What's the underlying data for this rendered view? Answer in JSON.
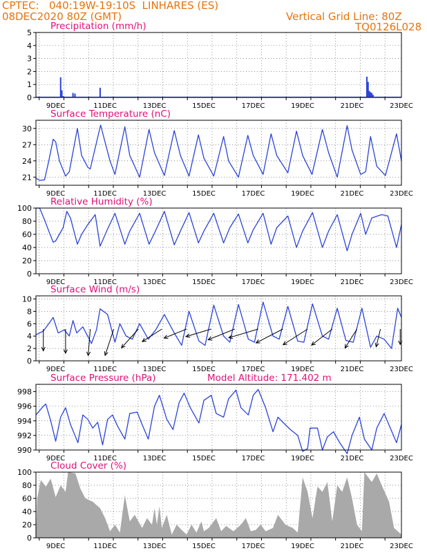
{
  "header": {
    "station": "CPTEC:   040:19W-19:10S  LINHARES (ES)",
    "run": "08DEC2020 80Z (GMT)",
    "grid_note": "Vertical Grid Line: 80Z",
    "model_code": "TQ0126L028"
  },
  "colors": {
    "series": "#2a43d8",
    "cloud": "#a9a9a9",
    "title": "#e0107a",
    "header": "#e8730c",
    "wind": "#000000"
  },
  "chart_data": [
    {
      "type": "bar",
      "title": "Precipitation (mm/h)",
      "ylim": [
        0,
        5
      ],
      "yticks": [
        0,
        1,
        2,
        3,
        4,
        5
      ],
      "xlabels": [
        "9DEC",
        "11DEC",
        "13DEC",
        "15DEC",
        "17DEC",
        "19DEC",
        "21DEC",
        "23DEC"
      ],
      "x_range_days": [
        8.2,
        23.0
      ],
      "values": [
        [
          9.2,
          1.55
        ],
        [
          9.25,
          0.55
        ],
        [
          9.3,
          0.1
        ],
        [
          9.7,
          0.35
        ],
        [
          9.78,
          0.3
        ],
        [
          10.8,
          0.75
        ],
        [
          21.6,
          1.6
        ],
        [
          21.65,
          1.2
        ],
        [
          21.7,
          0.5
        ],
        [
          21.75,
          0.4
        ],
        [
          21.8,
          0.35
        ],
        [
          21.85,
          0.2
        ]
      ]
    },
    {
      "type": "line",
      "title": "Surface Temperature (nC)",
      "ylim": [
        19.5,
        31.5
      ],
      "yticks": [
        21,
        24,
        27,
        30
      ],
      "xlabels": [
        "9DEC",
        "11DEC",
        "13DEC",
        "15DEC",
        "17DEC",
        "19DEC",
        "21DEC",
        "23DEC"
      ],
      "x_range_days": [
        8.2,
        23.0
      ],
      "values": [
        [
          8.2,
          20.8
        ],
        [
          8.35,
          20.4
        ],
        [
          8.55,
          20.5
        ],
        [
          8.72,
          24
        ],
        [
          8.9,
          28
        ],
        [
          9.0,
          27.5
        ],
        [
          9.15,
          24
        ],
        [
          9.4,
          21.2
        ],
        [
          9.55,
          22
        ],
        [
          9.88,
          30
        ],
        [
          10.05,
          25
        ],
        [
          10.3,
          22.8
        ],
        [
          10.4,
          22.5
        ],
        [
          10.82,
          30.6
        ],
        [
          11.2,
          24
        ],
        [
          11.4,
          21.5
        ],
        [
          11.8,
          30.3
        ],
        [
          12.0,
          25
        ],
        [
          12.4,
          21
        ],
        [
          12.78,
          29.8
        ],
        [
          13.0,
          25.5
        ],
        [
          13.4,
          21.3
        ],
        [
          13.8,
          29.6
        ],
        [
          14.05,
          25
        ],
        [
          14.4,
          21.2
        ],
        [
          14.78,
          28.8
        ],
        [
          15.0,
          24.5
        ],
        [
          15.4,
          21.2
        ],
        [
          15.8,
          28.5
        ],
        [
          16.0,
          24
        ],
        [
          16.4,
          21
        ],
        [
          16.78,
          28.7
        ],
        [
          17.0,
          25
        ],
        [
          17.4,
          21.5
        ],
        [
          17.72,
          29
        ],
        [
          17.95,
          25
        ],
        [
          18.4,
          21.8
        ],
        [
          18.75,
          29.5
        ],
        [
          19.0,
          25
        ],
        [
          19.38,
          21.5
        ],
        [
          19.8,
          29.8
        ],
        [
          20.05,
          25.5
        ],
        [
          20.4,
          21
        ],
        [
          20.8,
          30.5
        ],
        [
          21.0,
          26
        ],
        [
          21.35,
          21.5
        ],
        [
          21.55,
          22
        ],
        [
          21.75,
          28.5
        ],
        [
          22.0,
          23
        ],
        [
          22.35,
          21.3
        ],
        [
          22.8,
          29
        ],
        [
          23.0,
          24
        ]
      ]
    },
    {
      "type": "line",
      "title": "Relative Humidity (%)",
      "ylim": [
        0,
        100
      ],
      "yticks": [
        0,
        20,
        40,
        60,
        80,
        100
      ],
      "xlabels": [
        "9DEC",
        "11DEC",
        "13DEC",
        "15DEC",
        "17DEC",
        "19DEC",
        "21DEC",
        "23DEC"
      ],
      "x_range_days": [
        8.2,
        23.0
      ],
      "values": [
        [
          8.2,
          100
        ],
        [
          8.35,
          100
        ],
        [
          8.55,
          82
        ],
        [
          8.72,
          65
        ],
        [
          8.9,
          48
        ],
        [
          9.0,
          50
        ],
        [
          9.3,
          70
        ],
        [
          9.45,
          95
        ],
        [
          9.6,
          85
        ],
        [
          9.88,
          45
        ],
        [
          10.05,
          60
        ],
        [
          10.3,
          75
        ],
        [
          10.6,
          90
        ],
        [
          10.8,
          42
        ],
        [
          11.1,
          68
        ],
        [
          11.4,
          92
        ],
        [
          11.8,
          45
        ],
        [
          12.0,
          65
        ],
        [
          12.4,
          92
        ],
        [
          12.78,
          45
        ],
        [
          13.0,
          62
        ],
        [
          13.4,
          95
        ],
        [
          13.8,
          44
        ],
        [
          14.05,
          65
        ],
        [
          14.4,
          93
        ],
        [
          14.78,
          47
        ],
        [
          15.0,
          65
        ],
        [
          15.4,
          92
        ],
        [
          15.8,
          47
        ],
        [
          16.05,
          70
        ],
        [
          16.4,
          91
        ],
        [
          16.78,
          47
        ],
        [
          17.0,
          67
        ],
        [
          17.4,
          92
        ],
        [
          17.72,
          45
        ],
        [
          17.95,
          70
        ],
        [
          18.4,
          88
        ],
        [
          18.75,
          40
        ],
        [
          19.0,
          65
        ],
        [
          19.4,
          93
        ],
        [
          19.8,
          40
        ],
        [
          20.05,
          65
        ],
        [
          20.4,
          90
        ],
        [
          20.8,
          35
        ],
        [
          21.0,
          60
        ],
        [
          21.35,
          92
        ],
        [
          21.55,
          60
        ],
        [
          21.8,
          85
        ],
        [
          22.2,
          90
        ],
        [
          22.45,
          88
        ],
        [
          22.8,
          40
        ],
        [
          23.0,
          75
        ]
      ]
    },
    {
      "type": "line",
      "title": "Surface Wind (m/s)",
      "ylim": [
        0,
        10.5
      ],
      "yticks": [
        0,
        2,
        4,
        6,
        8,
        10
      ],
      "xlabels": [
        "9DEC",
        "11DEC",
        "13DEC",
        "15DEC",
        "17DEC",
        "19DEC",
        "21DEC",
        "23DEC"
      ],
      "x_range_days": [
        8.2,
        23.0
      ],
      "values": [
        [
          8.2,
          4.2
        ],
        [
          8.5,
          4.8
        ],
        [
          8.72,
          6
        ],
        [
          8.9,
          7
        ],
        [
          9.1,
          4.5
        ],
        [
          9.35,
          5
        ],
        [
          9.55,
          4
        ],
        [
          9.7,
          6.5
        ],
        [
          9.85,
          4.5
        ],
        [
          10.1,
          5.5
        ],
        [
          10.45,
          2.8
        ],
        [
          10.65,
          5
        ],
        [
          10.8,
          8.4
        ],
        [
          11.1,
          7.5
        ],
        [
          11.4,
          3
        ],
        [
          11.6,
          6
        ],
        [
          11.85,
          4
        ],
        [
          12.1,
          3.5
        ],
        [
          12.4,
          6
        ],
        [
          12.75,
          3.5
        ],
        [
          13.05,
          5
        ],
        [
          13.4,
          7.5
        ],
        [
          13.8,
          4.5
        ],
        [
          14.1,
          2.5
        ],
        [
          14.4,
          8
        ],
        [
          14.8,
          3.2
        ],
        [
          15.05,
          2.5
        ],
        [
          15.4,
          9
        ],
        [
          15.8,
          4
        ],
        [
          16.05,
          3
        ],
        [
          16.4,
          9.1
        ],
        [
          16.8,
          3.5
        ],
        [
          17.05,
          3
        ],
        [
          17.4,
          9.5
        ],
        [
          17.8,
          4
        ],
        [
          18.05,
          3.5
        ],
        [
          18.4,
          8.8
        ],
        [
          18.8,
          3.2
        ],
        [
          19.05,
          3
        ],
        [
          19.4,
          9.2
        ],
        [
          19.8,
          4
        ],
        [
          20.05,
          3.5
        ],
        [
          20.4,
          8.5
        ],
        [
          20.75,
          3.3
        ],
        [
          21.05,
          3
        ],
        [
          21.4,
          8.5
        ],
        [
          21.75,
          2.2
        ],
        [
          22.0,
          4
        ],
        [
          22.3,
          3.5
        ],
        [
          22.6,
          2
        ],
        [
          22.85,
          8.5
        ],
        [
          23.0,
          7
        ]
      ],
      "arrows": [
        [
          8.5,
          270,
          4.5
        ],
        [
          9.4,
          270,
          5
        ],
        [
          10.4,
          265,
          5.5
        ],
        [
          11.35,
          250,
          5.8
        ],
        [
          12.35,
          225,
          5.5
        ],
        [
          13.3,
          210,
          5.2
        ],
        [
          14.3,
          200,
          5.5
        ],
        [
          15.3,
          195,
          6
        ],
        [
          16.25,
          200,
          6.5
        ],
        [
          17.2,
          195,
          7
        ],
        [
          18.2,
          205,
          6.8
        ],
        [
          19.2,
          210,
          6.5
        ],
        [
          20.2,
          215,
          5.8
        ],
        [
          21.2,
          235,
          4.8
        ],
        [
          22.15,
          255,
          3.8
        ],
        [
          22.95,
          270,
          3.2
        ]
      ]
    },
    {
      "type": "line",
      "title": "Surface Pressure (hPa)",
      "annotation": "Model Altitude: 171.402 m",
      "ylim": [
        990,
        999
      ],
      "yticks": [
        990,
        992,
        994,
        996,
        998
      ],
      "xlabels": [
        "9DEC",
        "11DEC",
        "13DEC",
        "15DEC",
        "17DEC",
        "19DEC",
        "21DEC",
        "23DEC"
      ],
      "x_range_days": [
        8.2,
        23.0
      ],
      "values": [
        [
          8.2,
          994.8
        ],
        [
          8.5,
          996
        ],
        [
          8.6,
          996.3
        ],
        [
          8.8,
          994
        ],
        [
          9.0,
          991.2
        ],
        [
          9.2,
          994.5
        ],
        [
          9.4,
          995.8
        ],
        [
          9.6,
          993.5
        ],
        [
          9.9,
          991
        ],
        [
          10.1,
          994.8
        ],
        [
          10.3,
          994.2
        ],
        [
          10.5,
          993
        ],
        [
          10.7,
          993.8
        ],
        [
          10.9,
          990.7
        ],
        [
          11.1,
          994.2
        ],
        [
          11.3,
          994.8
        ],
        [
          11.5,
          993.3
        ],
        [
          11.8,
          991.5
        ],
        [
          12.0,
          995
        ],
        [
          12.3,
          995.2
        ],
        [
          12.5,
          993.5
        ],
        [
          12.75,
          991.5
        ],
        [
          13.0,
          996
        ],
        [
          13.2,
          997.5
        ],
        [
          13.5,
          994.2
        ],
        [
          13.75,
          992.8
        ],
        [
          14.0,
          996.5
        ],
        [
          14.2,
          997.8
        ],
        [
          14.45,
          995.8
        ],
        [
          14.8,
          993.7
        ],
        [
          15.0,
          996.8
        ],
        [
          15.3,
          997.5
        ],
        [
          15.5,
          995
        ],
        [
          15.8,
          994.5
        ],
        [
          16.0,
          997
        ],
        [
          16.3,
          998.2
        ],
        [
          16.5,
          995.8
        ],
        [
          16.8,
          994.8
        ],
        [
          17.0,
          997.5
        ],
        [
          17.2,
          998.3
        ],
        [
          17.5,
          995.8
        ],
        [
          17.8,
          992.5
        ],
        [
          18.0,
          994.5
        ],
        [
          18.2,
          993.8
        ],
        [
          18.5,
          992.8
        ],
        [
          18.8,
          992
        ],
        [
          19.0,
          989.8
        ],
        [
          19.2,
          990.2
        ],
        [
          19.3,
          993
        ],
        [
          19.6,
          993
        ],
        [
          19.8,
          990
        ],
        [
          20.0,
          991.8
        ],
        [
          20.25,
          992.5
        ],
        [
          20.5,
          991
        ],
        [
          20.8,
          989.5
        ],
        [
          21.0,
          992
        ],
        [
          21.3,
          994.5
        ],
        [
          21.5,
          991.5
        ],
        [
          21.8,
          990
        ],
        [
          22.0,
          993
        ],
        [
          22.3,
          995
        ],
        [
          22.55,
          993
        ],
        [
          22.8,
          991
        ],
        [
          23.0,
          993.5
        ]
      ]
    },
    {
      "type": "area",
      "title": "Cloud Cover (%)",
      "ylim": [
        0,
        100
      ],
      "yticks": [
        0,
        20,
        40,
        60,
        80,
        100
      ],
      "xlabels": [
        "9DEC",
        "11DEC",
        "13DEC",
        "15DEC",
        "17DEC",
        "19DEC",
        "21DEC",
        "23DEC"
      ],
      "x_range_days": [
        8.2,
        23.0
      ],
      "values": [
        [
          8.2,
          0
        ],
        [
          8.25,
          60
        ],
        [
          8.4,
          88
        ],
        [
          8.6,
          78
        ],
        [
          8.8,
          90
        ],
        [
          9.0,
          62
        ],
        [
          9.2,
          80
        ],
        [
          9.4,
          70
        ],
        [
          9.5,
          100
        ],
        [
          9.8,
          98
        ],
        [
          10.0,
          75
        ],
        [
          10.2,
          60
        ],
        [
          10.5,
          55
        ],
        [
          10.8,
          45
        ],
        [
          11.0,
          30
        ],
        [
          11.2,
          10
        ],
        [
          11.4,
          20
        ],
        [
          11.6,
          8
        ],
        [
          11.8,
          65
        ],
        [
          12.0,
          25
        ],
        [
          12.2,
          35
        ],
        [
          12.5,
          15
        ],
        [
          12.7,
          30
        ],
        [
          12.9,
          20
        ],
        [
          13.0,
          45
        ],
        [
          13.1,
          20
        ],
        [
          13.2,
          48
        ],
        [
          13.3,
          15
        ],
        [
          13.5,
          35
        ],
        [
          13.7,
          5
        ],
        [
          13.9,
          20
        ],
        [
          14.1,
          12
        ],
        [
          14.3,
          5
        ],
        [
          14.5,
          20
        ],
        [
          14.7,
          8
        ],
        [
          14.9,
          25
        ],
        [
          15.0,
          10
        ],
        [
          15.2,
          15
        ],
        [
          15.5,
          30
        ],
        [
          15.7,
          10
        ],
        [
          15.9,
          18
        ],
        [
          16.2,
          10
        ],
        [
          16.5,
          20
        ],
        [
          16.7,
          30
        ],
        [
          16.9,
          10
        ],
        [
          17.1,
          12
        ],
        [
          17.3,
          20
        ],
        [
          17.5,
          10
        ],
        [
          17.8,
          15
        ],
        [
          18.0,
          35
        ],
        [
          18.3,
          20
        ],
        [
          18.6,
          15
        ],
        [
          18.8,
          8
        ],
        [
          19.0,
          92
        ],
        [
          19.2,
          70
        ],
        [
          19.4,
          30
        ],
        [
          19.6,
          78
        ],
        [
          19.8,
          70
        ],
        [
          20.0,
          85
        ],
        [
          20.2,
          25
        ],
        [
          20.4,
          80
        ],
        [
          20.6,
          70
        ],
        [
          20.8,
          92
        ],
        [
          21.0,
          60
        ],
        [
          21.2,
          20
        ],
        [
          21.4,
          10
        ],
        [
          21.5,
          100
        ],
        [
          21.8,
          85
        ],
        [
          22.0,
          98
        ],
        [
          22.2,
          80
        ],
        [
          22.5,
          55
        ],
        [
          22.7,
          15
        ],
        [
          22.85,
          10
        ],
        [
          23.0,
          5
        ]
      ]
    }
  ]
}
